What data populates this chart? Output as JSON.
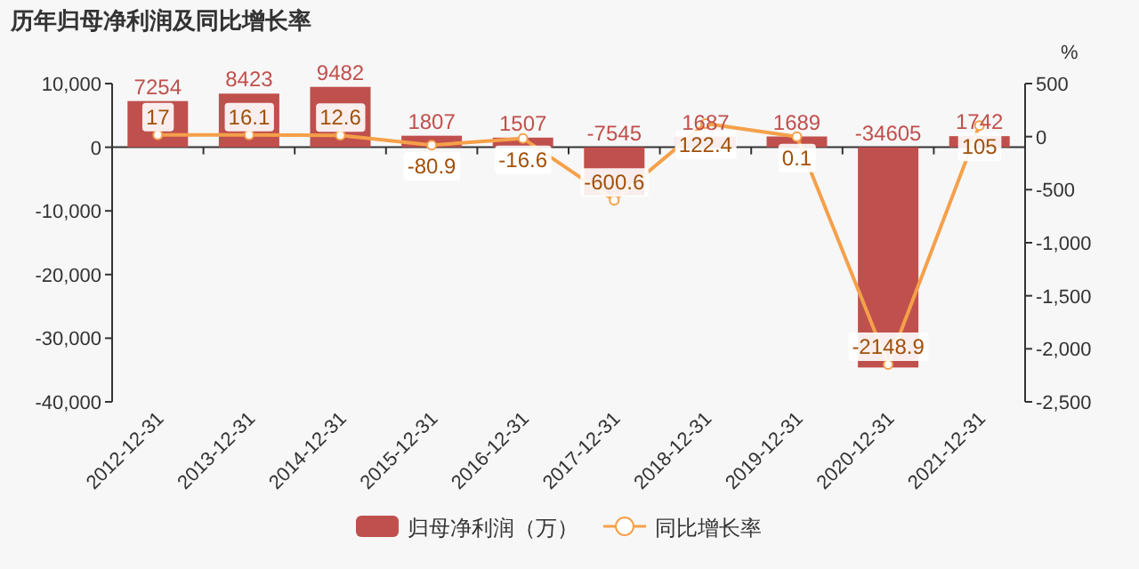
{
  "chart_data": {
    "type": "bar",
    "title": "历年归母净利润及同比增长率",
    "y2label": "%",
    "categories": [
      "2012-12-31",
      "2013-12-31",
      "2014-12-31",
      "2015-12-31",
      "2016-12-31",
      "2017-12-31",
      "2018-12-31",
      "2019-12-31",
      "2020-12-31",
      "2021-12-31"
    ],
    "series": [
      {
        "name": "归母净利润（万）",
        "color": "#c0504d",
        "values": [
          7254,
          8423,
          9482,
          1807,
          1507,
          -7545,
          1687,
          1689,
          -34605,
          1742
        ]
      },
      {
        "name": "同比增长率",
        "type": "line",
        "axis": "y2",
        "color": "#f5a04a",
        "values": [
          17,
          16.1,
          12.6,
          -80.9,
          -16.6,
          -600.6,
          122.4,
          0.1,
          -2148.9,
          105
        ]
      }
    ],
    "ylim": [
      -40000,
      10000
    ],
    "yticks": [
      {
        "value": 10000,
        "label": "10,000"
      },
      0,
      {
        "value": -10000,
        "label": "-10,000"
      },
      {
        "value": -20000,
        "label": "-20,000"
      },
      {
        "value": -30000,
        "label": "-30,000"
      },
      {
        "value": -40000,
        "label": "-40,000"
      }
    ],
    "y2lim": [
      -2500,
      500
    ],
    "y2ticks": [
      500,
      0,
      -500,
      {
        "value": -1000,
        "label": "-1,000"
      },
      {
        "value": -1500,
        "label": "-1,500"
      },
      {
        "value": -2000,
        "label": "-2,000"
      },
      {
        "value": -2500,
        "label": "-2,500"
      }
    ],
    "data_labels": true,
    "marker": "circle",
    "legend": "bottom"
  }
}
